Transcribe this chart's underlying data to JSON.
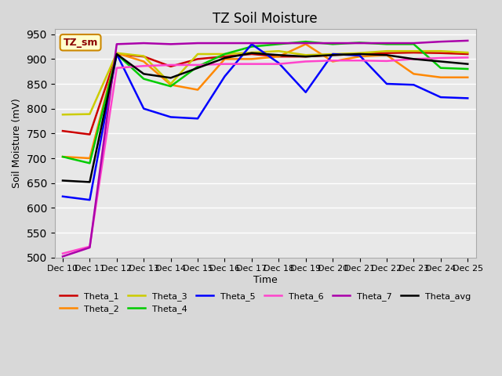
{
  "title": "TZ Soil Moisture",
  "xlabel": "Time",
  "ylabel": "Soil Moisture (mV)",
  "ylim": [
    500,
    960
  ],
  "yticks": [
    500,
    550,
    600,
    650,
    700,
    750,
    800,
    850,
    900,
    950
  ],
  "x_labels": [
    "Dec 10",
    "Dec 11",
    "Dec 12",
    "Dec 13",
    "Dec 14",
    "Dec 15",
    "Dec 16",
    "Dec 17",
    "Dec 18",
    "Dec 19",
    "Dec 20",
    "Dec 21",
    "Dec 22",
    "Dec 23",
    "Dec 24",
    "Dec 25"
  ],
  "annotation_label": "TZ_sm",
  "bg_color": "#e8e8e8",
  "plot_bg_color": "#f0f0f0",
  "series": {
    "Theta_1": {
      "color": "#cc0000",
      "data": [
        755,
        748,
        910,
        905,
        885,
        900,
        905,
        910,
        905,
        905,
        908,
        910,
        912,
        913,
        912,
        910
      ]
    },
    "Theta_2": {
      "color": "#ff8800",
      "data": [
        703,
        700,
        912,
        895,
        848,
        838,
        900,
        900,
        905,
        930,
        895,
        905,
        908,
        870,
        863,
        863
      ]
    },
    "Theta_3": {
      "color": "#cccc00",
      "data": [
        788,
        789,
        912,
        906,
        850,
        910,
        910,
        913,
        916,
        908,
        910,
        912,
        916,
        916,
        916,
        913
      ]
    },
    "Theta_4": {
      "color": "#00cc00",
      "data": [
        703,
        690,
        910,
        860,
        845,
        885,
        910,
        925,
        930,
        935,
        930,
        933,
        930,
        930,
        882,
        880
      ]
    },
    "Theta_5": {
      "color": "#0000ff",
      "data": [
        623,
        616,
        910,
        800,
        783,
        780,
        865,
        930,
        892,
        833,
        910,
        907,
        850,
        848,
        823,
        821
      ]
    },
    "Theta_6": {
      "color": "#ff44cc",
      "data": [
        508,
        522,
        882,
        886,
        888,
        888,
        890,
        890,
        890,
        895,
        897,
        897,
        896,
        900,
        902,
        903
      ]
    },
    "Theta_7": {
      "color": "#aa00aa",
      "data": [
        502,
        520,
        930,
        932,
        930,
        932,
        932,
        932,
        932,
        932,
        932,
        932,
        932,
        932,
        935,
        937
      ]
    },
    "Theta_avg": {
      "color": "#000000",
      "data": [
        655,
        652,
        910,
        870,
        862,
        882,
        902,
        912,
        908,
        905,
        908,
        910,
        908,
        900,
        895,
        890
      ]
    }
  }
}
